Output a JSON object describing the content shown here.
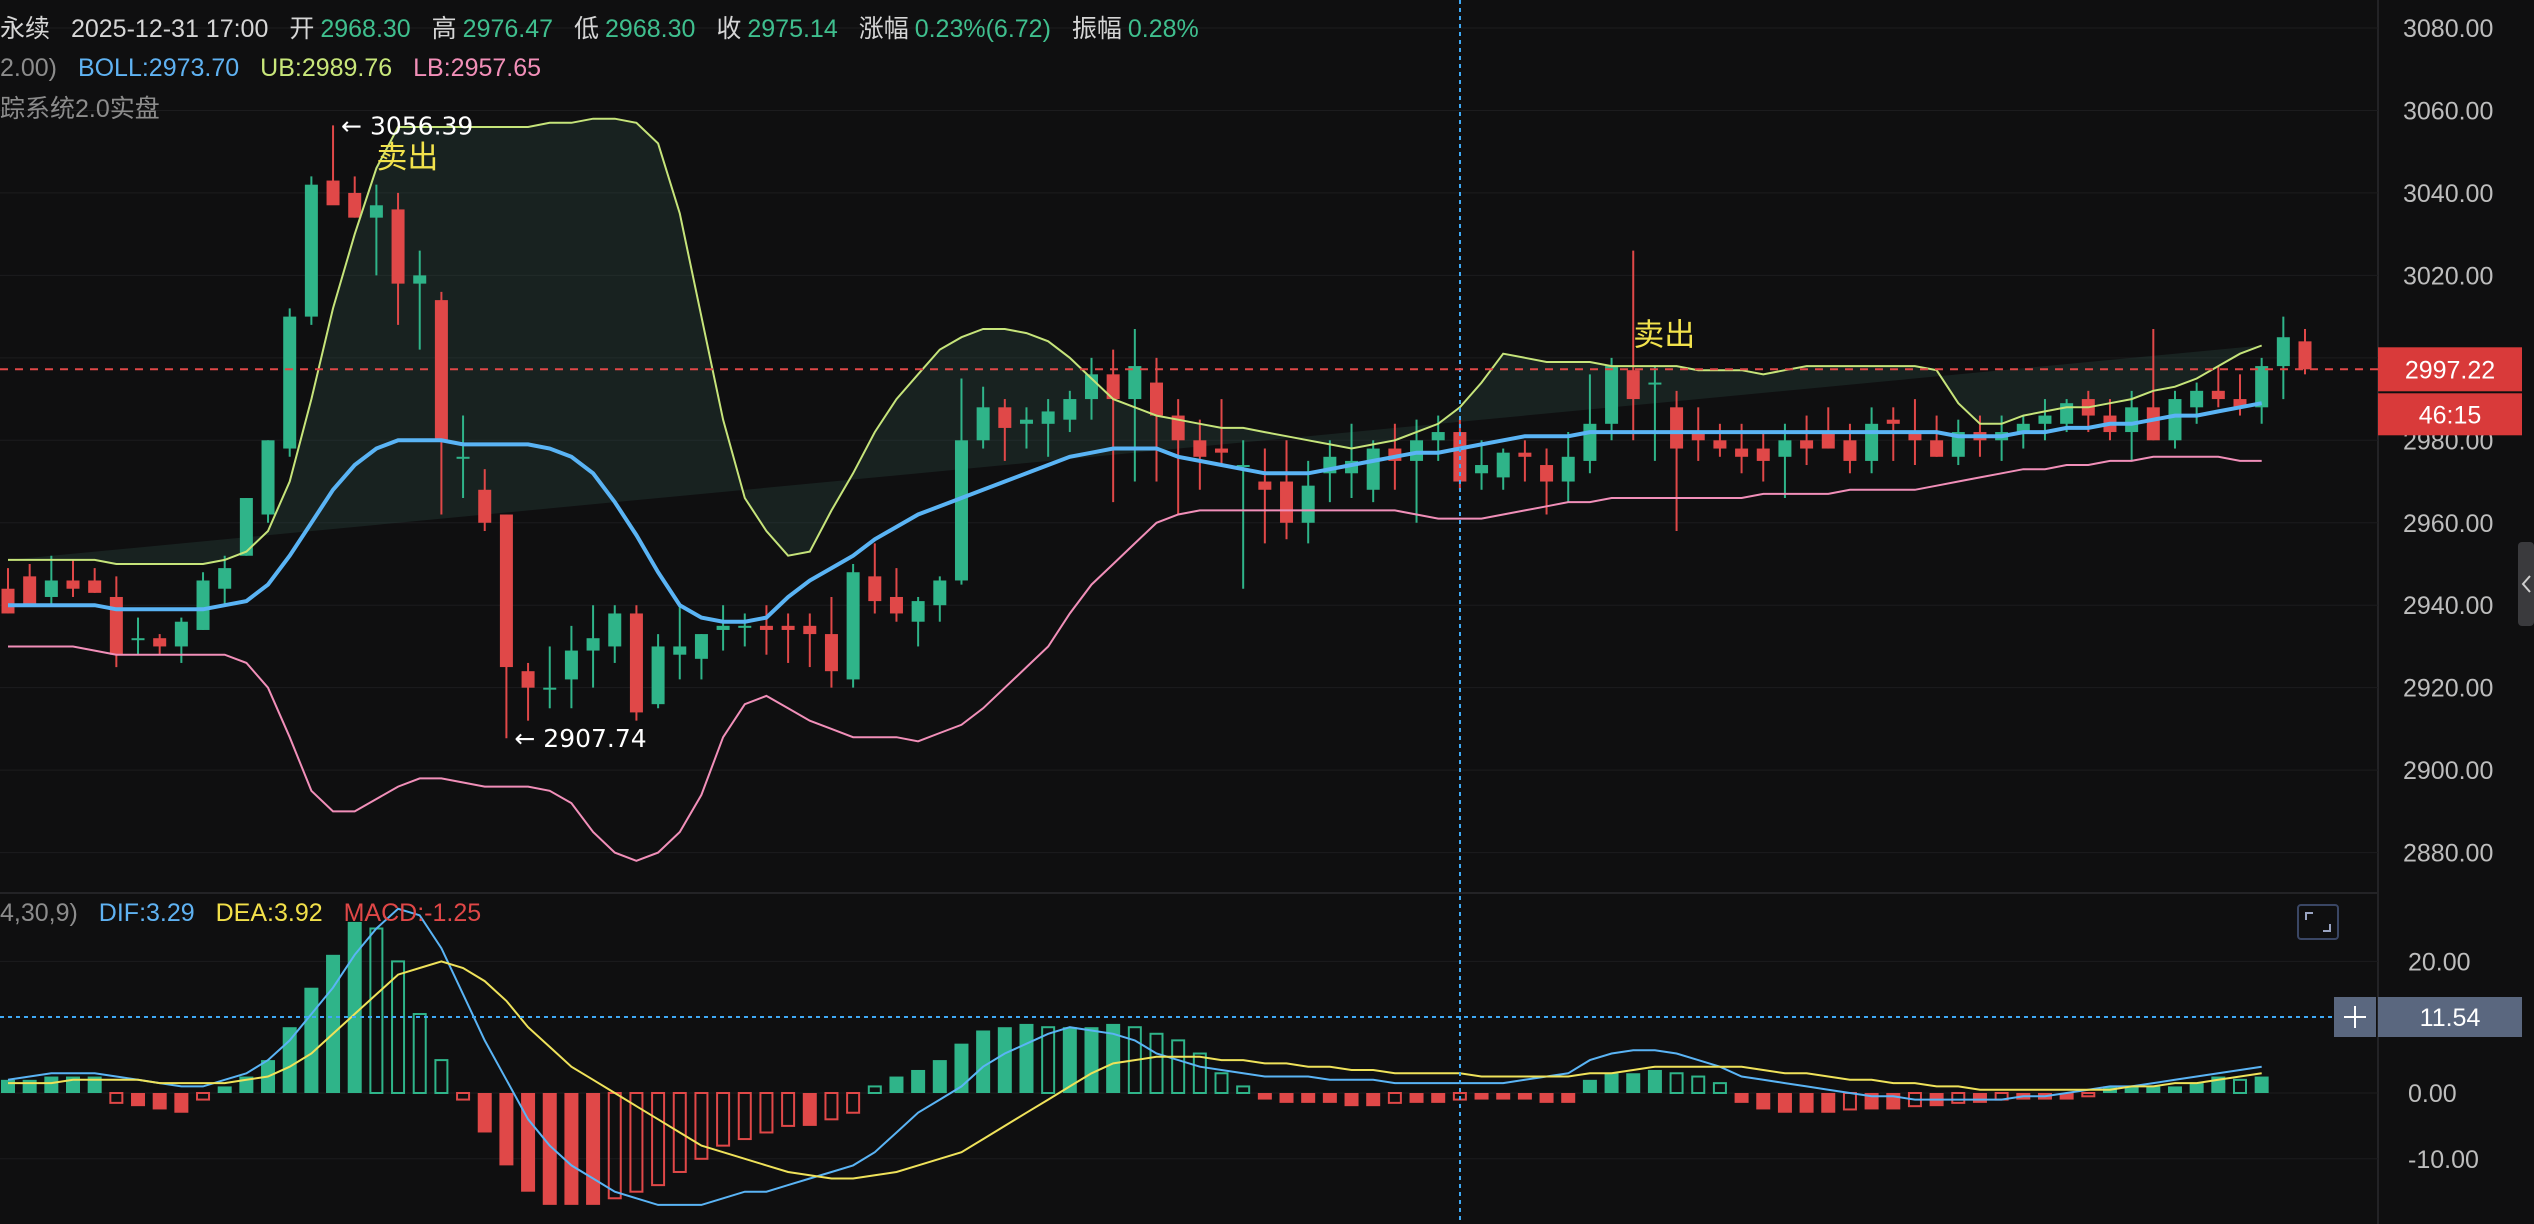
{
  "header": {
    "name": "永续",
    "datetime": "2025-12-31 17:00",
    "open_label": "开",
    "open": "2968.30",
    "high_label": "高",
    "high": "2976.47",
    "low_label": "低",
    "low": "2968.30",
    "close_label": "收",
    "close": "2975.14",
    "change_label": "涨幅",
    "change": "0.23%(6.72)",
    "amp_label": "振幅",
    "amp": "0.28%"
  },
  "boll_legend": {
    "params": "2.00)",
    "boll": "BOLL:2973.70",
    "ub": "UB:2989.76",
    "lb": "LB:2957.65"
  },
  "indicator_name": "踪系统2.0实盘",
  "macd_legend": {
    "params": "4,30,9)",
    "dif": "DIF:3.29",
    "dea": "DEA:3.92",
    "macd": "MACD:-1.25"
  },
  "price_labels": {
    "current": "2997.22",
    "countdown": "46:15",
    "crosshair_macd": "11.54"
  },
  "colors": {
    "up": "#2fb489",
    "down": "#e04848",
    "mid": "#5ab4f5",
    "upper": "#c6e47a",
    "lower": "#f18fb9",
    "dif": "#5ab4f5",
    "dea": "#efe25a"
  },
  "chart_data": [
    {
      "type": "candlestick",
      "ylim": [
        2870,
        3085
      ],
      "yticks": [
        "3080.00",
        "3060.00",
        "3040.00",
        "3020.00",
        "3000.00",
        "2980.00",
        "2960.00",
        "2940.00",
        "2920.00",
        "2900.00",
        "2880.00"
      ],
      "annotations": [
        {
          "text": "← 3056.39",
          "bar": 15,
          "price": 3056.39
        },
        {
          "text": "卖出",
          "bar": 17,
          "price": 3046
        },
        {
          "text": "← 2907.74",
          "bar": 23,
          "price": 2907.74
        },
        {
          "text": "卖出",
          "bar": 75,
          "price": 3003
        }
      ],
      "candles": [
        [
          2944,
          2949,
          2938,
          2938
        ],
        [
          2947,
          2950,
          2940,
          2940
        ],
        [
          2942,
          2952,
          2940,
          2946
        ],
        [
          2946,
          2951,
          2942,
          2944
        ],
        [
          2946,
          2949,
          2943,
          2943
        ],
        [
          2942,
          2947,
          2925,
          2928
        ],
        [
          2932,
          2937,
          2928,
          2932
        ],
        [
          2932,
          2933,
          2928,
          2930
        ],
        [
          2930,
          2937,
          2926,
          2936
        ],
        [
          2934,
          2948,
          2934,
          2946
        ],
        [
          2944,
          2952,
          2940,
          2949
        ],
        [
          2952,
          2966,
          2952,
          2966
        ],
        [
          2962,
          2980,
          2960,
          2980
        ],
        [
          2978,
          3012,
          2976,
          3010
        ],
        [
          3010,
          3044,
          3008,
          3042
        ],
        [
          3043,
          3056.39,
          3038,
          3037
        ],
        [
          3040,
          3044,
          3034,
          3034
        ],
        [
          3034,
          3042,
          3020,
          3037
        ],
        [
          3036,
          3040,
          3008,
          3018
        ],
        [
          3018,
          3026,
          3002,
          3020
        ],
        [
          3014,
          3016,
          2962,
          2980
        ],
        [
          2976,
          2986,
          2966,
          2976
        ],
        [
          2968,
          2973,
          2958,
          2960
        ],
        [
          2962,
          2962,
          2907.74,
          2925
        ],
        [
          2924,
          2926,
          2912,
          2920
        ],
        [
          2920,
          2930,
          2915,
          2920
        ],
        [
          2922,
          2935,
          2915,
          2929
        ],
        [
          2929,
          2940,
          2920,
          2932
        ],
        [
          2930,
          2940,
          2926,
          2938
        ],
        [
          2938,
          2940,
          2912,
          2914
        ],
        [
          2916,
          2933,
          2915,
          2930
        ],
        [
          2928,
          2940,
          2922,
          2930
        ],
        [
          2927,
          2933,
          2922,
          2933
        ],
        [
          2934,
          2940,
          2929,
          2935
        ],
        [
          2935,
          2938,
          2930,
          2935
        ],
        [
          2935,
          2940,
          2928,
          2934
        ],
        [
          2935,
          2938,
          2926,
          2934
        ],
        [
          2935,
          2938,
          2925,
          2933
        ],
        [
          2933,
          2942,
          2920,
          2924
        ],
        [
          2922,
          2950,
          2920,
          2948
        ],
        [
          2947,
          2955,
          2938,
          2941
        ],
        [
          2942,
          2949,
          2936,
          2938
        ],
        [
          2936,
          2942,
          2930,
          2941
        ],
        [
          2940,
          2947,
          2936,
          2946
        ],
        [
          2946,
          2995,
          2945,
          2980
        ],
        [
          2980,
          2993,
          2978,
          2988
        ],
        [
          2988,
          2990,
          2975,
          2983
        ],
        [
          2984,
          2988,
          2978,
          2985
        ],
        [
          2984,
          2990,
          2976,
          2987
        ],
        [
          2985,
          2992,
          2982,
          2990
        ],
        [
          2990,
          3000,
          2985,
          2996
        ],
        [
          2996,
          3002,
          2965,
          2990
        ],
        [
          2990,
          3007,
          2970,
          2998
        ],
        [
          2994,
          3000,
          2970,
          2986
        ],
        [
          2986,
          2990,
          2962,
          2980
        ],
        [
          2980,
          2985,
          2968,
          2976
        ],
        [
          2978,
          2990,
          2974,
          2977
        ],
        [
          2974,
          2980,
          2944,
          2974
        ],
        [
          2970,
          2978,
          2955,
          2968
        ],
        [
          2970,
          2980,
          2956,
          2960
        ],
        [
          2960,
          2975,
          2955,
          2969
        ],
        [
          2972,
          2980,
          2965,
          2976
        ],
        [
          2972,
          2984,
          2966,
          2975
        ],
        [
          2968,
          2980,
          2965,
          2978
        ],
        [
          2978,
          2984,
          2968,
          2975
        ],
        [
          2975,
          2985,
          2960,
          2980
        ],
        [
          2980,
          2986,
          2975,
          2982
        ],
        [
          2982,
          2985,
          2968,
          2970
        ],
        [
          2972,
          2980,
          2968,
          2974
        ],
        [
          2971,
          2978,
          2968,
          2977
        ],
        [
          2977,
          2980,
          2970,
          2976
        ],
        [
          2974,
          2978,
          2962,
          2970
        ],
        [
          2970,
          2982,
          2965,
          2976
        ],
        [
          2975,
          2996,
          2972,
          2984
        ],
        [
          2984,
          3000,
          2980,
          2998
        ],
        [
          2997,
          3026,
          2980,
          2990
        ],
        [
          2994,
          2998,
          2975,
          2994
        ],
        [
          2988,
          2992,
          2958,
          2978
        ],
        [
          2982,
          2988,
          2975,
          2980
        ],
        [
          2980,
          2984,
          2976,
          2978
        ],
        [
          2978,
          2984,
          2972,
          2976
        ],
        [
          2978,
          2982,
          2970,
          2975
        ],
        [
          2976,
          2984,
          2966,
          2980
        ],
        [
          2980,
          2986,
          2974,
          2978
        ],
        [
          2982,
          2988,
          2978,
          2978
        ],
        [
          2980,
          2984,
          2972,
          2975
        ],
        [
          2975,
          2988,
          2972,
          2984
        ],
        [
          2985,
          2988,
          2975,
          2984
        ],
        [
          2982,
          2990,
          2974,
          2980
        ],
        [
          2980,
          2986,
          2976,
          2976
        ],
        [
          2976,
          2985,
          2974,
          2982
        ],
        [
          2982,
          2986,
          2976,
          2980
        ],
        [
          2980,
          2986,
          2975,
          2982
        ],
        [
          2982,
          2986,
          2978,
          2984
        ],
        [
          2984,
          2990,
          2980,
          2986
        ],
        [
          2984,
          2990,
          2982,
          2989
        ],
        [
          2990,
          2992,
          2982,
          2986
        ],
        [
          2986,
          2990,
          2980,
          2982
        ],
        [
          2982,
          2992,
          2975,
          2988
        ],
        [
          2988,
          3007,
          2980,
          2980
        ],
        [
          2980,
          2992,
          2978,
          2990
        ],
        [
          2988,
          2994,
          2984,
          2992
        ],
        [
          2992,
          2998,
          2988,
          2990
        ],
        [
          2990,
          2996,
          2986,
          2988
        ],
        [
          2988,
          3000,
          2984,
          2998
        ],
        [
          2998,
          3010,
          2990,
          3005
        ],
        [
          3004,
          3007,
          2996,
          2997.22
        ]
      ],
      "boll_upper": [
        2951,
        2951,
        2951,
        2951,
        2951,
        2950,
        2950,
        2950,
        2950,
        2950,
        2951,
        2953,
        2958,
        2970,
        2990,
        3012,
        3030,
        3046,
        3056,
        3056,
        3056,
        3056,
        3056,
        3056,
        3056,
        3057,
        3057,
        3058,
        3058,
        3057,
        3052,
        3035,
        3010,
        2985,
        2966,
        2958,
        2952,
        2953,
        2963,
        2972,
        2982,
        2990,
        2996,
        3002,
        3005,
        3007,
        3007,
        3006,
        3004,
        3000,
        2995,
        2990,
        2988,
        2986,
        2985,
        2984,
        2983,
        2983,
        2982,
        2981,
        2980,
        2979,
        2978,
        2979,
        2980,
        2982,
        2984,
        2988,
        2994,
        3001,
        3000,
        2999,
        2999,
        2999,
        2998,
        2998,
        2998,
        2998,
        2997,
        2997,
        2997,
        2996,
        2997,
        2998,
        2998,
        2998,
        2998,
        2998,
        2998,
        2997,
        2989,
        2984,
        2984,
        2986,
        2987,
        2988,
        2988,
        2989,
        2990,
        2992,
        2993,
        2995,
        2998,
        3001,
        3003
      ],
      "boll_mid": [
        2940,
        2940,
        2940,
        2940,
        2940,
        2939,
        2939,
        2939,
        2939,
        2939,
        2940,
        2941,
        2945,
        2952,
        2960,
        2968,
        2974,
        2978,
        2980,
        2980,
        2980,
        2979,
        2979,
        2979,
        2979,
        2978,
        2976,
        2972,
        2965,
        2957,
        2948,
        2940,
        2937,
        2936,
        2936,
        2937,
        2942,
        2946,
        2949,
        2952,
        2956,
        2959,
        2962,
        2964,
        2966,
        2968,
        2970,
        2972,
        2974,
        2976,
        2977,
        2978,
        2978,
        2978,
        2976,
        2975,
        2974,
        2973,
        2972,
        2972,
        2972,
        2973,
        2974,
        2975,
        2976,
        2977,
        2977,
        2978,
        2979,
        2980,
        2981,
        2981,
        2981,
        2982,
        2982,
        2982,
        2982,
        2982,
        2982,
        2982,
        2982,
        2982,
        2982,
        2982,
        2982,
        2982,
        2982,
        2982,
        2982,
        2982,
        2981,
        2981,
        2981,
        2982,
        2982,
        2983,
        2983,
        2984,
        2984,
        2985,
        2986,
        2986,
        2987,
        2988,
        2989
      ],
      "boll_lower": [
        2930,
        2930,
        2930,
        2930,
        2929,
        2928,
        2928,
        2928,
        2928,
        2928,
        2928,
        2926,
        2920,
        2908,
        2895,
        2890,
        2890,
        2893,
        2896,
        2898,
        2898,
        2897,
        2896,
        2896,
        2896,
        2895,
        2892,
        2885,
        2880,
        2878,
        2880,
        2885,
        2894,
        2908,
        2916,
        2918,
        2915,
        2912,
        2910,
        2908,
        2908,
        2908,
        2907,
        2909,
        2911,
        2915,
        2920,
        2925,
        2930,
        2938,
        2945,
        2950,
        2955,
        2960,
        2962,
        2963,
        2963,
        2963,
        2963,
        2963,
        2963,
        2963,
        2963,
        2963,
        2963,
        2962,
        2961,
        2961,
        2961,
        2962,
        2963,
        2964,
        2965,
        2965,
        2966,
        2966,
        2966,
        2966,
        2966,
        2966,
        2966,
        2967,
        2967,
        2967,
        2967,
        2968,
        2968,
        2968,
        2968,
        2969,
        2970,
        2971,
        2972,
        2973,
        2973,
        2974,
        2974,
        2975,
        2975,
        2976,
        2976,
        2976,
        2976,
        2975,
        2975
      ]
    },
    {
      "type": "macd",
      "ylim": [
        -19,
        30
      ],
      "yticks": [
        "20.00",
        "0.00",
        "-10.00"
      ],
      "macd": [
        2,
        2,
        2.5,
        2.5,
        2.5,
        -1.5,
        -2,
        -2.5,
        -3,
        -1,
        1,
        2.5,
        5,
        10,
        16,
        21,
        26,
        25,
        20,
        12,
        5,
        -1,
        -6,
        -11,
        -15,
        -17,
        -17,
        -17,
        -16,
        -15,
        -14,
        -12,
        -10,
        -8,
        -7,
        -6,
        -5,
        -5,
        -4,
        -3,
        1,
        2.5,
        3.5,
        5,
        7.5,
        9.5,
        10,
        10.5,
        10,
        10,
        10,
        10.5,
        10,
        9,
        8,
        6,
        3,
        1,
        -1,
        -1.5,
        -1.5,
        -1.5,
        -2,
        -2,
        -1.5,
        -1.5,
        -1.5,
        -1,
        -1,
        -1,
        -1,
        -1.5,
        -1.5,
        2,
        3,
        3,
        3.5,
        3,
        2.5,
        1.5,
        -1.5,
        -2.5,
        -3,
        -3,
        -3,
        -2.5,
        -2.5,
        -2.5,
        -2,
        -2,
        -1.5,
        -1.5,
        -1,
        -1,
        -1,
        -1,
        -0.5,
        1,
        1,
        1,
        1,
        1.5,
        2.5,
        2,
        2.5
      ],
      "dif": [
        2,
        2.5,
        3,
        3,
        3,
        2.5,
        2,
        1.5,
        1,
        1,
        2,
        3,
        5,
        8,
        12,
        16,
        21,
        25,
        28,
        27,
        22,
        15,
        8,
        2,
        -4,
        -8,
        -11,
        -13,
        -15,
        -16,
        -17,
        -17,
        -17,
        -16,
        -15,
        -15,
        -14,
        -13,
        -12,
        -11,
        -9,
        -6,
        -3,
        -1,
        1,
        4,
        6,
        7.5,
        9,
        10,
        9.5,
        9,
        8,
        6,
        5,
        4,
        3.5,
        3,
        2.5,
        2.5,
        2.5,
        2,
        2,
        2,
        1.5,
        1.5,
        1.5,
        1.5,
        1.5,
        1.5,
        2,
        2.5,
        3,
        5,
        6,
        6.5,
        6.5,
        6,
        5,
        4,
        2.5,
        2,
        1.5,
        1,
        0.5,
        0,
        -0.5,
        -0.5,
        -1,
        -1,
        -1,
        -1,
        -1,
        -0.5,
        -0.5,
        0,
        0.5,
        1,
        1,
        1.5,
        2,
        2.5,
        3,
        3.5,
        4
      ],
      "dea": [
        1.5,
        1.5,
        1.5,
        2,
        2,
        2,
        2,
        1.5,
        1.5,
        1.5,
        1.5,
        2,
        2.5,
        4,
        6,
        9,
        12,
        15,
        18,
        19,
        20,
        19,
        17,
        14,
        10,
        7,
        4,
        2,
        0,
        -2,
        -4,
        -6,
        -8,
        -9,
        -10,
        -11,
        -12,
        -12.5,
        -13,
        -13,
        -12.5,
        -12,
        -11,
        -10,
        -9,
        -7,
        -5,
        -3,
        -1,
        1,
        3,
        4.5,
        5,
        5.5,
        5.5,
        5.5,
        5,
        5,
        4.5,
        4.5,
        4,
        4,
        3.5,
        3.5,
        3,
        3,
        3,
        3,
        2.5,
        2.5,
        2.5,
        2.5,
        2.5,
        3,
        3,
        3.5,
        4,
        4,
        4,
        4,
        4,
        3.5,
        3,
        3,
        2.5,
        2,
        2,
        1.5,
        1.5,
        1,
        1,
        0.5,
        0.5,
        0.5,
        0.5,
        0.5,
        0.5,
        0.5,
        1,
        1,
        1.5,
        1.5,
        2,
        2.5,
        3
      ]
    }
  ]
}
